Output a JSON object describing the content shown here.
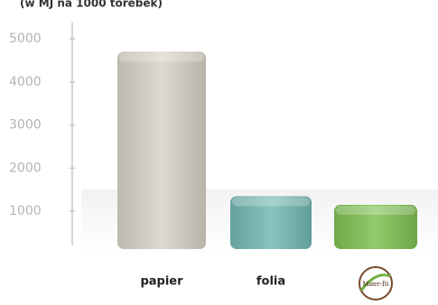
{
  "chart_data": {
    "type": "bar",
    "title": "(w MJ na 1000 torebek)",
    "categories": [
      "papier",
      "folia",
      "Mater-Bi"
    ],
    "values": [
      4700,
      1350,
      1150
    ],
    "colors": [
      "#d9d3c7",
      "#74b9b4",
      "#80c253"
    ],
    "ylim": [
      0,
      5000
    ],
    "yticks": [
      1000,
      2000,
      3000,
      4000,
      5000
    ]
  }
}
